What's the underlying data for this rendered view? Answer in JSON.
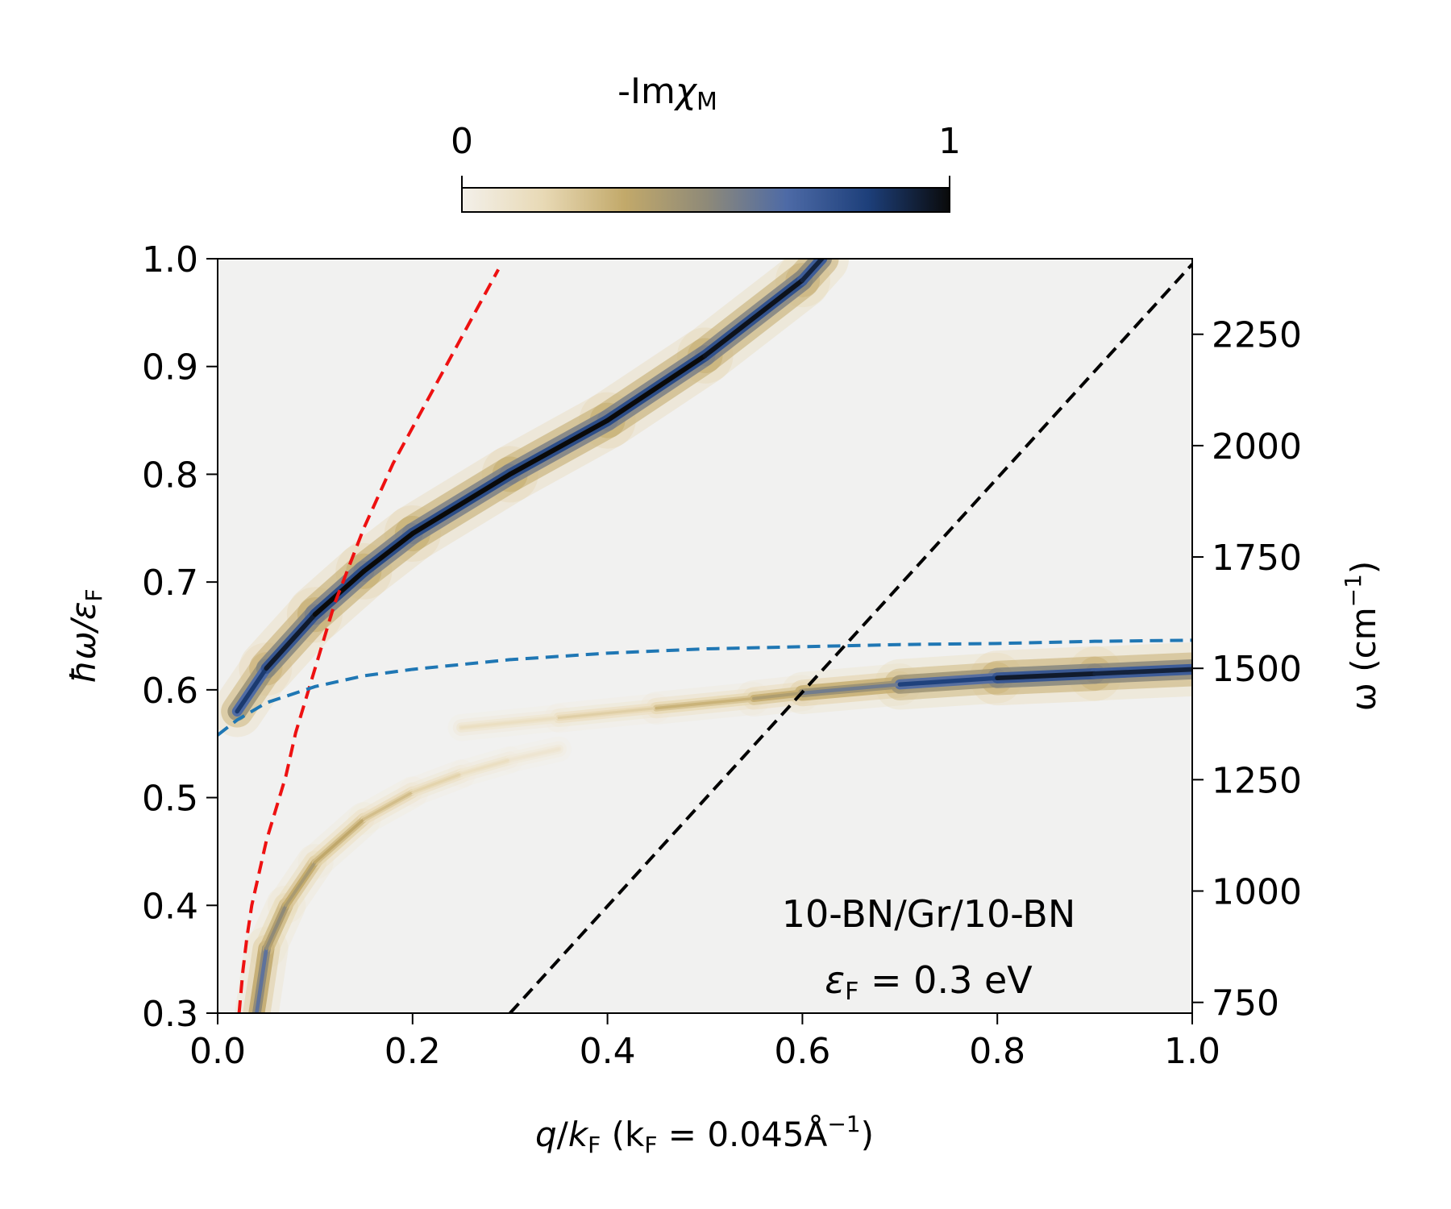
{
  "chart_data": {
    "type": "heatmap",
    "colorbar": {
      "label_prefix": "-Im",
      "label_symbol": "χ",
      "label_sub": "M",
      "min_label": "0",
      "max_label": "1",
      "range": [
        0,
        1
      ],
      "colors": [
        "#f3f0ea",
        "#e8d9b5",
        "#c2a96a",
        "#8f8a78",
        "#4d6aa6",
        "#1d3f7a",
        "#0a0a0a"
      ]
    },
    "xaxis": {
      "range": [
        0,
        1
      ],
      "ticks": [
        0.0,
        0.2,
        0.4,
        0.6,
        0.8,
        1.0
      ],
      "tick_labels": [
        "0.0",
        "0.2",
        "0.4",
        "0.6",
        "0.8",
        "1.0"
      ],
      "label_q": "q",
      "label_kf_sub": "F",
      "label_rest": " (k",
      "label_eq": " = 0.045Å",
      "label_exp": "−1",
      "label_close": ")"
    },
    "yaxis_left": {
      "range": [
        0.3,
        1.0
      ],
      "ticks": [
        0.3,
        0.4,
        0.5,
        0.6,
        0.7,
        0.8,
        0.9,
        1.0
      ],
      "tick_labels": [
        "0.3",
        "0.4",
        "0.5",
        "0.6",
        "0.7",
        "0.8",
        "0.9",
        "1.0"
      ],
      "label_main": "ħω/ε",
      "label_sub": "F"
    },
    "yaxis_right": {
      "ticks": [
        750,
        1000,
        1250,
        1500,
        1750,
        2000,
        2250
      ],
      "tick_labels": [
        "750",
        "1000",
        "1250",
        "1500",
        "1750",
        "2000",
        "2250"
      ],
      "cm_per_unit": 2419.6,
      "label_main": "ω (cm",
      "label_exp": "−1",
      "label_close": ")"
    },
    "annotation": {
      "line1": "10-BN/Gr/10-BN",
      "line2_sym": "ε",
      "line2_sub": "F",
      "line2_rest": " = 0.3 eV"
    },
    "series": [
      {
        "name": "red-dashed",
        "color": "#ee1111",
        "style": "dashed",
        "x": [
          0.022,
          0.026,
          0.03,
          0.035,
          0.04,
          0.05,
          0.06,
          0.07,
          0.08,
          0.1,
          0.12,
          0.15,
          0.18,
          0.21,
          0.24,
          0.27,
          0.288
        ],
        "y": [
          0.3,
          0.34,
          0.37,
          0.4,
          0.42,
          0.46,
          0.49,
          0.52,
          0.56,
          0.62,
          0.68,
          0.75,
          0.81,
          0.86,
          0.91,
          0.96,
          0.99
        ]
      },
      {
        "name": "blue-dashed",
        "color": "#1f77b4",
        "style": "dashed",
        "x": [
          0.0,
          0.02,
          0.05,
          0.1,
          0.15,
          0.2,
          0.3,
          0.4,
          0.5,
          0.6,
          0.7,
          0.8,
          0.9,
          1.0
        ],
        "y": [
          0.558,
          0.572,
          0.588,
          0.603,
          0.613,
          0.619,
          0.628,
          0.634,
          0.638,
          0.64,
          0.642,
          0.643,
          0.645,
          0.646
        ]
      },
      {
        "name": "black-dashed",
        "color": "#000000",
        "style": "dashed",
        "x": [
          0.3,
          1.0
        ],
        "y": [
          0.3,
          0.995
        ]
      }
    ],
    "heatmap_bands": [
      {
        "name": "upper-plasmon",
        "x": [
          0.02,
          0.05,
          0.1,
          0.15,
          0.2,
          0.3,
          0.4,
          0.5,
          0.6,
          0.62
        ],
        "y": [
          0.58,
          0.62,
          0.67,
          0.71,
          0.745,
          0.8,
          0.85,
          0.91,
          0.98,
          1.0
        ],
        "intensity": [
          0.8,
          0.9,
          1.0,
          1.0,
          1.0,
          1.0,
          1.0,
          1.0,
          0.95,
          0.9
        ]
      },
      {
        "name": "phonon-branch",
        "x": [
          0.25,
          0.35,
          0.45,
          0.55,
          0.6,
          0.7,
          0.8,
          0.9,
          1.0
        ],
        "y": [
          0.565,
          0.574,
          0.583,
          0.592,
          0.597,
          0.605,
          0.611,
          0.615,
          0.619
        ],
        "intensity": [
          0.1,
          0.15,
          0.25,
          0.35,
          0.45,
          0.7,
          0.95,
          0.95,
          0.9
        ]
      },
      {
        "name": "lower-branch",
        "x": [
          0.04,
          0.05,
          0.07,
          0.1,
          0.15,
          0.2,
          0.25,
          0.3,
          0.35
        ],
        "y": [
          0.3,
          0.36,
          0.4,
          0.44,
          0.48,
          0.505,
          0.522,
          0.535,
          0.545
        ],
        "intensity": [
          0.7,
          0.55,
          0.45,
          0.38,
          0.3,
          0.22,
          0.15,
          0.1,
          0.06
        ]
      }
    ]
  }
}
